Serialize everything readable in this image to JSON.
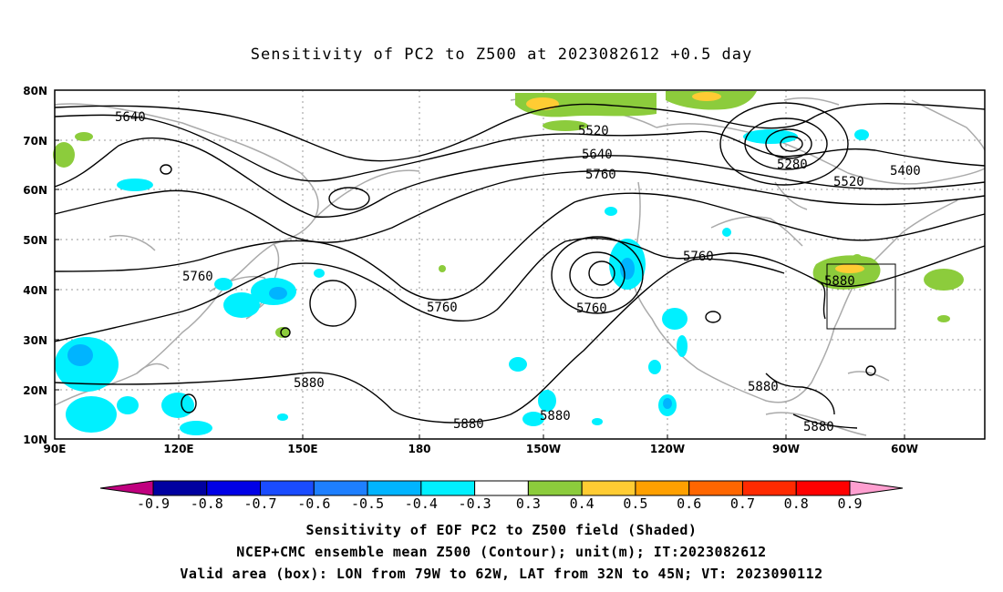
{
  "title": "Sensitivity of PC2 to Z500 at 2023082612 +0.5 day",
  "map": {
    "lon_labels": [
      "90E",
      "120E",
      "150E",
      "180",
      "150W",
      "120W",
      "90W",
      "60W"
    ],
    "lat_labels": [
      "80N",
      "70N",
      "60N",
      "50N",
      "40N",
      "30N",
      "20N",
      "10N"
    ],
    "contour_labels": [
      "5640",
      "5520",
      "5640",
      "5760",
      "5280",
      "5400",
      "5520",
      "5760",
      "5880",
      "5760",
      "5760",
      "5760",
      "5880",
      "5880",
      "5880",
      "5880",
      "5880"
    ],
    "valid_box": {
      "lon_from": "79W",
      "lon_to": "62W",
      "lat_from": "32N",
      "lat_to": "45N"
    }
  },
  "colorbar": {
    "labels": [
      "-0.9",
      "-0.8",
      "-0.7",
      "-0.6",
      "-0.5",
      "-0.4",
      "-0.3",
      "0.3",
      "0.4",
      "0.5",
      "0.6",
      "0.7",
      "0.8",
      "0.9"
    ],
    "colors": [
      "#0000a0",
      "#0000e6",
      "#1a4cff",
      "#1e7fff",
      "#00b4ff",
      "#00f0ff",
      "#ffffff",
      "#8ccc3c",
      "#ffcc33",
      "#ffa000",
      "#ff6600",
      "#ff2a00",
      "#ff0000"
    ],
    "left_arrow_color": "#c0007f",
    "right_arrow_color": "#ff9fd0"
  },
  "captions": [
    "Sensitivity of EOF PC2 to Z500 field (Shaded)",
    "NCEP+CMC ensemble mean Z500 (Contour); unit(m); IT:2023082612",
    "Valid area (box): LON from 79W to 62W, LAT from 32N to 45N; VT: 2023090112"
  ]
}
